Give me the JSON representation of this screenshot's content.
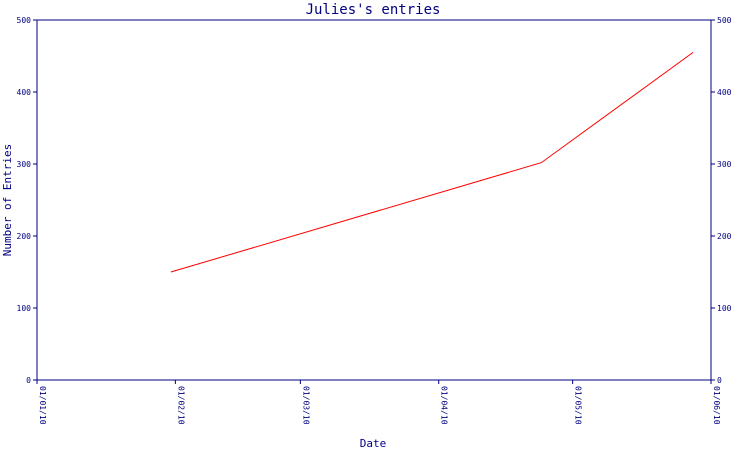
{
  "chart_data": {
    "type": "line",
    "title": "Julies's entries",
    "xlabel": "Date",
    "ylabel": "Number of Entries",
    "x_tick_labels": [
      "01/01/10",
      "01/02/10",
      "01/03/10",
      "01/04/10",
      "01/05/10",
      "01/06/10"
    ],
    "x_ticks": [
      "2010-01-01",
      "2010-02-01",
      "2010-03-01",
      "2010-04-01",
      "2010-05-01",
      "2010-06-01"
    ],
    "xlim": [
      "2010-01-01",
      "2010-06-01"
    ],
    "ylim": [
      0,
      500
    ],
    "y_ticks": [
      0,
      100,
      200,
      300,
      400,
      500
    ],
    "y_tick_labels": [
      "0",
      "100",
      "200",
      "300",
      "400",
      "500"
    ],
    "right_axis_ticks": true,
    "grid": false,
    "series": [
      {
        "color": "#ff0000",
        "x": [
          "2010-01-31",
          "2010-04-24",
          "2010-05-28"
        ],
        "values": [
          150,
          302,
          455
        ]
      }
    ]
  }
}
